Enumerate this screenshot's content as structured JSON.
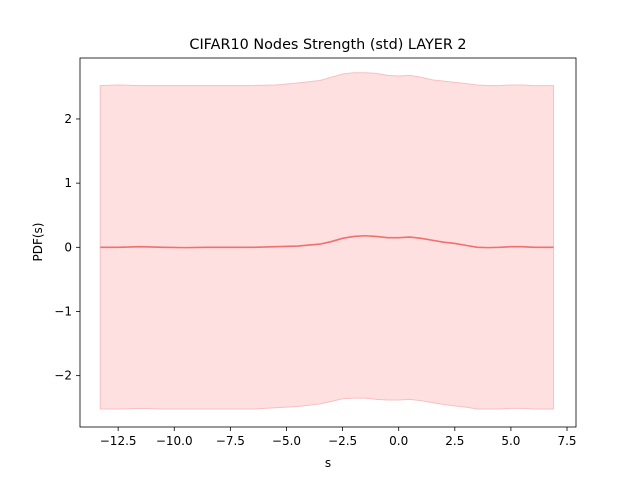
{
  "chart_data": {
    "type": "line",
    "title": "CIFAR10 Nodes Strength (std) LAYER 2",
    "xlabel": "s",
    "ylabel": "PDF(s)",
    "xlim": [
      -14.2,
      7.9
    ],
    "ylim": [
      -2.8,
      2.95
    ],
    "grid": false,
    "colors": {
      "line": "#f07070",
      "band": "#ffe0e0",
      "band_edge": "#f7c0c0"
    },
    "x_ticks": [
      -12.5,
      -10.0,
      -7.5,
      -5.0,
      -2.5,
      0.0,
      2.5,
      5.0,
      7.5
    ],
    "x_tick_labels": [
      "−12.5",
      "−10.0",
      "−7.5",
      "−5.0",
      "−2.5",
      "0.0",
      "2.5",
      "5.0",
      "7.5"
    ],
    "y_ticks": [
      -2,
      -1,
      0,
      1,
      2
    ],
    "y_tick_labels": [
      "−2",
      "−1",
      "0",
      "1",
      "2"
    ],
    "series": [
      {
        "x": [
          -13.3,
          -12.5,
          -11.5,
          -10.5,
          -9.5,
          -8.5,
          -7.5,
          -6.5,
          -5.5,
          -4.5,
          -3.5,
          -3.0,
          -2.5,
          -2.0,
          -1.5,
          -1.0,
          -0.5,
          0.0,
          0.5,
          1.0,
          1.5,
          2.0,
          2.5,
          3.0,
          3.5,
          4.0,
          4.5,
          5.0,
          5.5,
          6.0,
          6.9
        ],
        "values": [
          0.0,
          0.0,
          0.01,
          0.0,
          -0.005,
          0.0,
          0.0,
          0.0,
          0.01,
          0.02,
          0.05,
          0.09,
          0.14,
          0.17,
          0.18,
          0.17,
          0.15,
          0.15,
          0.16,
          0.14,
          0.11,
          0.08,
          0.06,
          0.03,
          0.0,
          -0.005,
          0.0,
          0.01,
          0.01,
          0.0,
          0.0
        ],
        "upper": [
          2.52,
          2.53,
          2.52,
          2.52,
          2.52,
          2.52,
          2.52,
          2.52,
          2.53,
          2.56,
          2.6,
          2.65,
          2.7,
          2.72,
          2.72,
          2.71,
          2.68,
          2.67,
          2.68,
          2.65,
          2.61,
          2.59,
          2.57,
          2.55,
          2.53,
          2.52,
          2.52,
          2.53,
          2.53,
          2.52,
          2.52
        ],
        "lower": [
          -2.52,
          -2.52,
          -2.51,
          -2.52,
          -2.52,
          -2.52,
          -2.52,
          -2.52,
          -2.5,
          -2.48,
          -2.44,
          -2.4,
          -2.36,
          -2.35,
          -2.35,
          -2.37,
          -2.38,
          -2.38,
          -2.37,
          -2.39,
          -2.42,
          -2.45,
          -2.47,
          -2.49,
          -2.52,
          -2.52,
          -2.52,
          -2.51,
          -2.51,
          -2.52,
          -2.52
        ]
      }
    ]
  }
}
